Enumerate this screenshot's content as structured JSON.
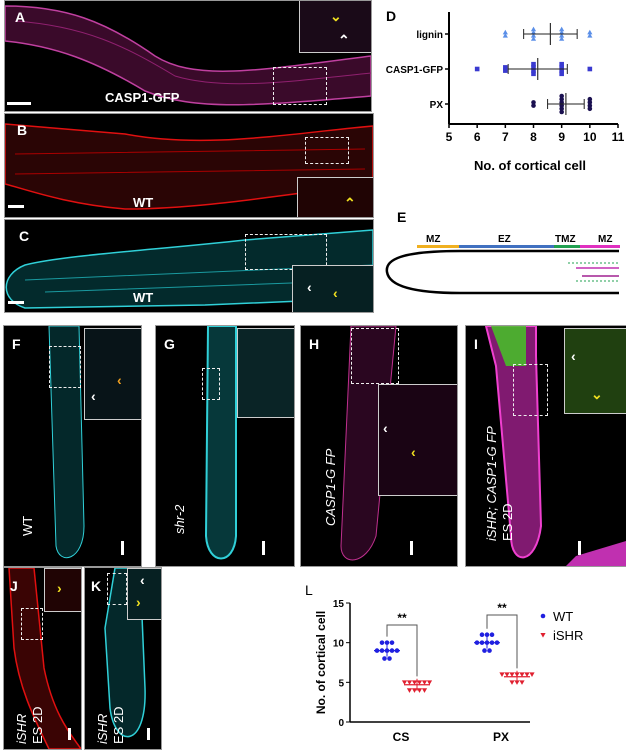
{
  "panels": {
    "A": {
      "label": "A",
      "caption": "CASP1-GFP"
    },
    "B": {
      "label": "B",
      "caption": "WT"
    },
    "C": {
      "label": "C",
      "caption": "WT"
    },
    "D": {
      "label": "D"
    },
    "E": {
      "label": "E",
      "zones": [
        "MZ",
        "EZ",
        "TMZ",
        "MZ"
      ]
    },
    "F": {
      "label": "F",
      "caption": "WT"
    },
    "G": {
      "label": "G",
      "caption": "shr-2"
    },
    "H": {
      "label": "H",
      "caption": "CASP1-G FP"
    },
    "I": {
      "label": "I",
      "caption": "iSHR; CASP1-G FP",
      "caption2": "ES 2D"
    },
    "J": {
      "label": "J",
      "caption": "iSHR",
      "caption2": "ES 2D"
    },
    "K": {
      "label": "K",
      "caption": "iSHR",
      "caption2": "ES 2D"
    },
    "L": {
      "label": "L"
    }
  },
  "colors": {
    "magenta": "#e040c0",
    "red": "#e01010",
    "cyan": "#30d0d8",
    "yellow": "#f0e020",
    "orange": "#f0a020",
    "zone_mz": "#f0b020",
    "zone_ez": "#4070c0",
    "zone_tmz": "#20a050",
    "zone_mz2": "#e030c0"
  },
  "chart_data": [
    {
      "type": "scatter",
      "title": "",
      "xlabel": "No. of cortical cell",
      "ylabel": "",
      "xlim": [
        5,
        11
      ],
      "xticks": [
        "5",
        "6",
        "7",
        "8",
        "9",
        "10",
        "11"
      ],
      "categories": [
        "lignin",
        "CASP1-GFP",
        "PX"
      ],
      "series": [
        {
          "name": "lignin",
          "color": "#5b8fe8",
          "marker": "triangle",
          "values": [
            7,
            7,
            8,
            8,
            8,
            8,
            9,
            9,
            9,
            9,
            10,
            10
          ],
          "mean": 8.6,
          "sd_range": [
            7.65,
            9.55
          ]
        },
        {
          "name": "CASP1-GFP",
          "color": "#3a3ad0",
          "marker": "square",
          "values": [
            6,
            7,
            7,
            8,
            8,
            8,
            8,
            9,
            9,
            9,
            9,
            10
          ],
          "mean": 8.15,
          "sd_range": [
            7.1,
            9.2
          ]
        },
        {
          "name": "PX",
          "color": "#1a1050",
          "marker": "circle",
          "values": [
            8,
            8,
            9,
            9,
            9,
            9,
            9,
            9,
            10,
            10,
            10,
            10
          ],
          "mean": 9.15,
          "sd_range": [
            8.5,
            9.8
          ]
        }
      ]
    },
    {
      "type": "scatter",
      "title": "",
      "xlabel": "",
      "ylabel": "No. of cortical cell",
      "ylim": [
        0,
        15
      ],
      "yticks": [
        "0",
        "5",
        "10",
        "15"
      ],
      "categories": [
        "CS",
        "PX"
      ],
      "legend": {
        "position": "top-right",
        "entries": [
          "WT",
          "iSHR"
        ]
      },
      "series": [
        {
          "name": "WT",
          "color": "#2020e0",
          "marker": "circle",
          "values": [
            [
              8,
              8,
              9,
              9,
              9,
              9,
              9,
              10,
              10,
              10
            ],
            [
              9,
              9,
              10,
              10,
              10,
              10,
              10,
              11,
              11,
              11
            ]
          ],
          "means": [
            9,
            10
          ]
        },
        {
          "name": "iSHR",
          "color": "#e02030",
          "marker": "triangle-down",
          "values": [
            [
              4,
              4,
              4,
              4,
              5,
              5,
              5,
              5,
              5,
              5
            ],
            [
              5,
              5,
              5,
              6,
              6,
              6,
              6,
              6,
              6,
              6
            ]
          ],
          "means": [
            4.7,
            5.7
          ]
        }
      ],
      "significance": [
        "**",
        "**"
      ]
    }
  ]
}
